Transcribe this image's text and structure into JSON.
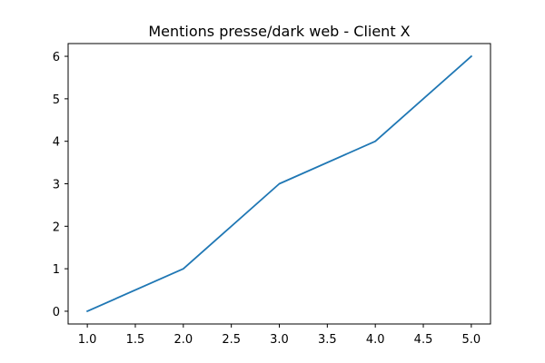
{
  "chart_data": {
    "type": "line",
    "title": "Mentions presse/dark web - Client X",
    "xlabel": "",
    "ylabel": "",
    "x": [
      1,
      2,
      3,
      4,
      5
    ],
    "series": [
      {
        "values": [
          0,
          1,
          3,
          4,
          6
        ],
        "color": "#1f77b4"
      }
    ],
    "xlim": [
      0.8,
      5.2
    ],
    "ylim": [
      -0.3,
      6.3
    ],
    "xticks": [
      1.0,
      1.5,
      2.0,
      2.5,
      3.0,
      3.5,
      4.0,
      4.5,
      5.0
    ],
    "xtick_labels": [
      "1.0",
      "1.5",
      "2.0",
      "2.5",
      "3.0",
      "3.5",
      "4.0",
      "4.5",
      "5.0"
    ],
    "yticks": [
      0,
      1,
      2,
      3,
      4,
      5,
      6
    ],
    "ytick_labels": [
      "0",
      "1",
      "2",
      "3",
      "4",
      "5",
      "6"
    ],
    "grid": false,
    "legend": false
  }
}
